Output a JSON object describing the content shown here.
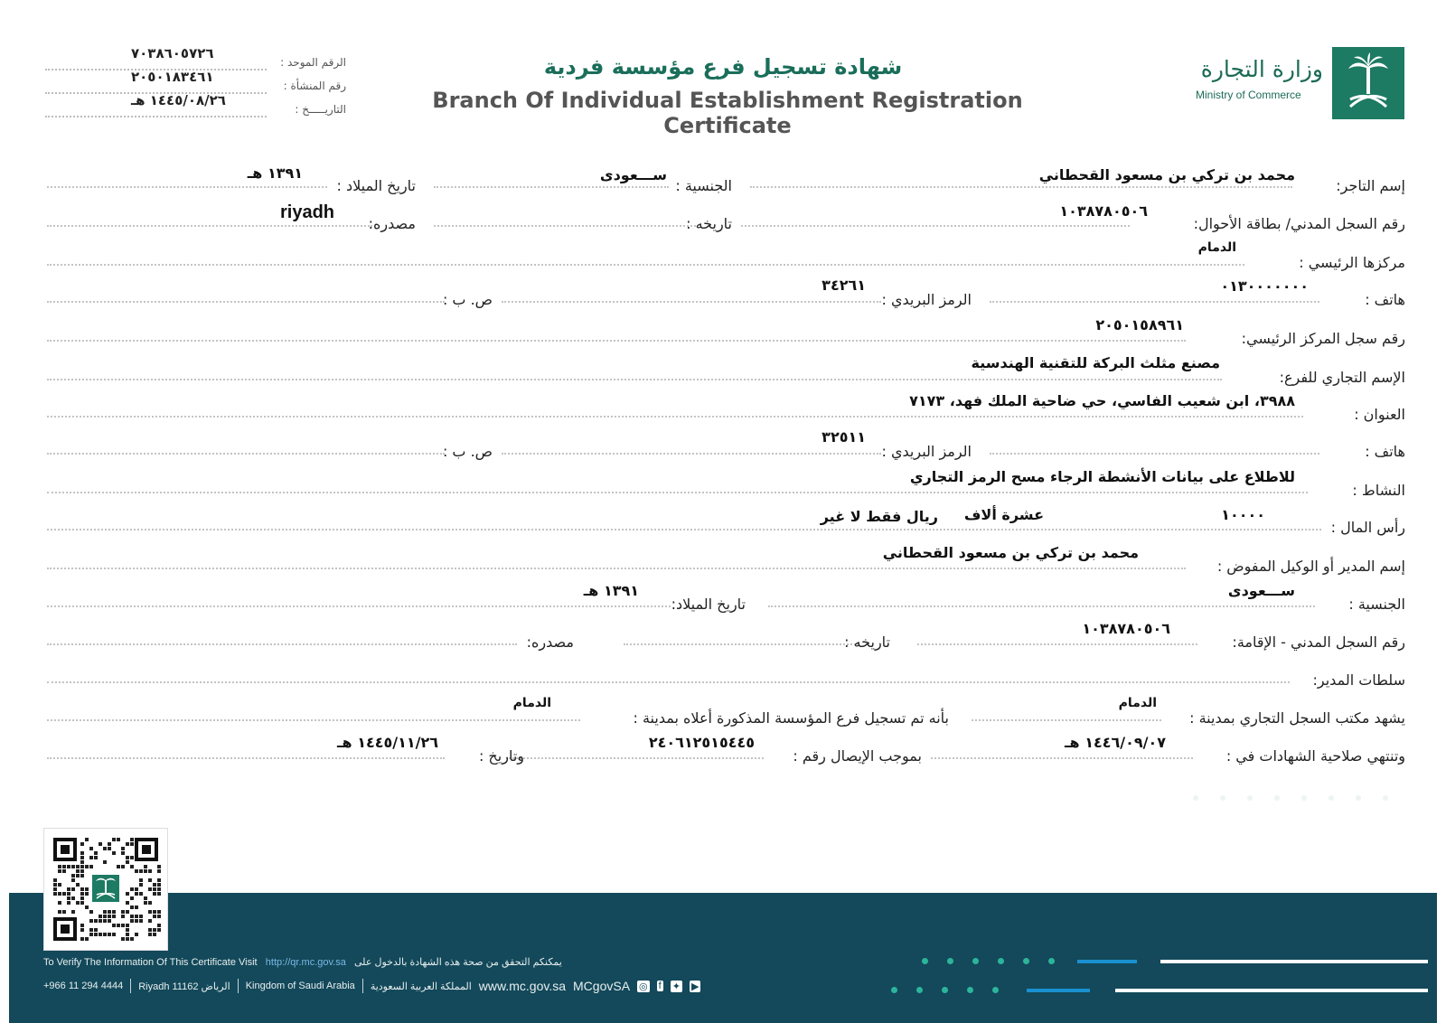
{
  "header": {
    "ministry_ar": "وزارة التجارة",
    "ministry_en": "Ministry of Commerce",
    "title_ar": "شهادة تسجيل فرع مؤسسة فردية",
    "title_en": "Branch Of Individual Establishment Registration Certificate",
    "unified_number_label": "الرقم الموحد :",
    "unified_number": "٧٠٣٨٦٠٥٧٢٦",
    "establishment_number_label": "رقم المنشأة :",
    "establishment_number": "٢٠٥٠١٨٣٤٦١",
    "date_label": "التاريـــــخ :",
    "date": "١٤٤٥/٠٨/٢٦ هـ"
  },
  "fields": {
    "merchant_name_label": "إسم التاجر:",
    "merchant_name": "محمد بن تركي بن مسعود القحطاني",
    "nationality_label": "الجنسية :",
    "nationality": "ســـعودى",
    "birth_date_label": "تاريخ الميلاد :",
    "birth_date": "١٣٩١ هـ",
    "civil_id_label": "رقم السجل المدني/ بطاقة الأحوال:",
    "civil_id": "١٠٣٨٧٨٠٥٠٦",
    "id_date_label": "تاريخه :",
    "id_source_label": "مصدره:",
    "id_source": "riyadh",
    "main_center_label": "مركزها الرئيسي :",
    "main_center": "الدمام",
    "phone_label": "هاتف :",
    "phone": "٠١٣٠٠٠٠٠٠٠",
    "postal_code_label": "الرمز البريدي :",
    "postal_code": "٣٤٢٦١",
    "po_box_label": "ص. ب :",
    "main_cr_label": "رقم سجل المركز الرئيسي:",
    "main_cr": "٢٠٥٠١٥٨٩٦١",
    "branch_trade_name_label": "الإسم التجاري للفرع:",
    "branch_trade_name": "مصنع مثلث البركة للتقنية الهندسية",
    "address_label": "العنوان :",
    "address": "٣٩٨٨، ابن شعيب الفاسي، حي ضاحية الملك فهد، ٧١٧٣",
    "phone2_label": "هاتف :",
    "postal_code2_label": "الرمز البريدي :",
    "postal_code2": "٣٢٥١١",
    "po_box2_label": "ص. ب :",
    "activity_label": "النشاط :",
    "activity": "للاطلاع على بيانات الأنشطة الرجاء مسح الرمز التجاري",
    "capital_label": "رأس المال :",
    "capital": "١٠٠٠٠",
    "capital_words": "عشرة ألاف",
    "capital_currency": "ريال  فقط لا غير",
    "manager_name_label": "إسم المدير أو الوكيل المفوض :",
    "manager_name": "محمد بن تركي بن مسعود القحطاني",
    "manager_nationality_label": "الجنسية :",
    "manager_nationality": "ســـعودى",
    "manager_birth_label": "تاريخ الميلاد:",
    "manager_birth": "١٣٩١ هـ",
    "manager_civil_label": "رقم السجل المدني - الإقامة:",
    "manager_civil": "١٠٣٨٧٨٠٥٠٦",
    "manager_civil_date_label": "تاريخه :",
    "manager_civil_source_label": "مصدره:",
    "manager_powers_label": "سلطات المدير:",
    "certify_label": "يشهد مكتب السجل التجاري بمدينة :",
    "certify_city": "الدمام",
    "registered_label": "بأنه تم تسجيل فرع المؤسسة المذكورة أعلاه بمدينة :",
    "registered_city": "الدمام",
    "expiry_label": "وتنتهي صلاحية الشهادات في :",
    "expiry": "١٤٤٦/٠٩/٠٧ هـ",
    "receipt_label": "بموجب الإيصال رقم :",
    "receipt": "٢٤٠٦١٢٥١٥٤٤٥",
    "receipt_date_label": "وتاريخ :",
    "receipt_date": "١٤٤٥/١١/٢٦ هـ"
  },
  "footer": {
    "verify_en": "To Verify The Information Of This Certificate Visit",
    "verify_url": "http://qr.mc.gov.sa",
    "verify_ar": "يمكنكم التحقق من صحة هذه الشهادة بالدخول على",
    "phone": "+966 11 294 4444",
    "city": "Riyadh 11162 الرياض",
    "country": "Kingdom of Saudi Arabia",
    "country_ar": "المملكة العربية السعودية",
    "website": "www.mc.gov.sa",
    "handle": "MCgovSA",
    "colors": {
      "footer_bg": "#13495a",
      "accent_green": "#2cb59b",
      "accent_blue": "#1a8fd0",
      "title_green": "#1a6e5a"
    }
  }
}
